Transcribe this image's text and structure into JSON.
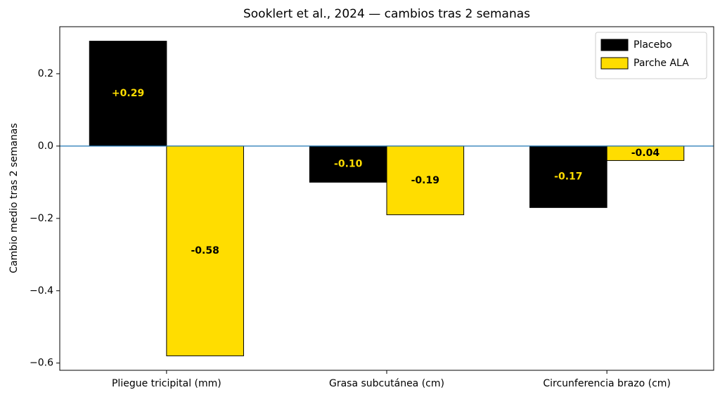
{
  "chart_data": {
    "type": "bar",
    "title": "Sooklert et al., 2024 — cambios tras 2 semanas",
    "y_label": "Cambio medio tras 2 semanas",
    "categories": [
      "Pliegue tricipital (mm)",
      "Grasa subcutánea (cm)",
      "Circunferencia brazo (cm)"
    ],
    "series": [
      {
        "name": "Placebo",
        "color": "#000000",
        "label_color": "#ffdd00",
        "values": [
          0.29,
          -0.1,
          -0.17
        ],
        "value_labels": [
          "+0.29",
          "-0.10",
          "-0.17"
        ]
      },
      {
        "name": "Parche ALA",
        "color": "#ffdd00",
        "label_color": "#000000",
        "values": [
          -0.58,
          -0.19,
          -0.04
        ],
        "value_labels": [
          "-0.58",
          "-0.19",
          "-0.04"
        ]
      }
    ],
    "ylim": [
      -0.62,
      0.33
    ],
    "yticks": [
      0.2,
      {
        "value": 0,
        "label": "0.0"
      },
      {
        "value": -0.2,
        "label": "−0.2"
      },
      {
        "value": -0.4,
        "label": "−0.4"
      },
      {
        "value": -0.6,
        "label": "−0.6"
      }
    ],
    "hline": {
      "value": 0,
      "color": "#1f77b4"
    },
    "legend": "upper right"
  }
}
